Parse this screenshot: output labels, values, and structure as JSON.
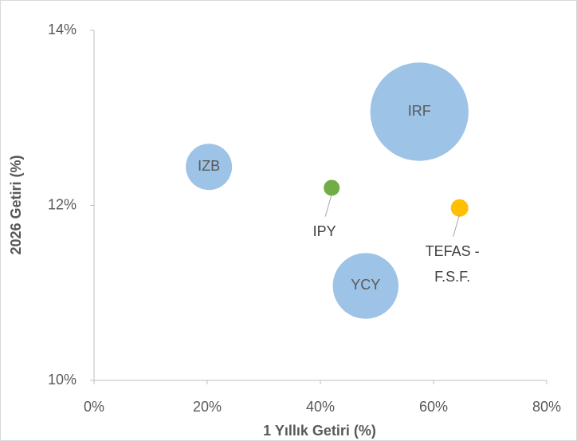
{
  "chart_data": {
    "type": "bubble",
    "xlabel": "1 Yıllık Getiri (%)",
    "ylabel": "2026 Getiri (%)",
    "xlim": [
      0,
      80
    ],
    "xticks": [
      {
        "value": 0,
        "label": "0%"
      },
      {
        "value": 20,
        "label": "20%"
      },
      {
        "value": 40,
        "label": "40%"
      },
      {
        "value": 60,
        "label": "60%"
      },
      {
        "value": 80,
        "label": "80%"
      }
    ],
    "ylim": [
      10,
      14
    ],
    "yticks": [
      {
        "value": 10,
        "label": "10%"
      },
      {
        "value": 12,
        "label": "12%"
      },
      {
        "value": 14,
        "label": "14%"
      }
    ],
    "series": [
      {
        "name": "IRF",
        "color": "#9dc3e6",
        "x": 57.5,
        "y": 13.07,
        "size": 38
      },
      {
        "name": "IZB",
        "color": "#9dc3e6",
        "x": 20.3,
        "y": 12.44,
        "size": 8.4
      },
      {
        "name": "IPY",
        "color": "#70ad47",
        "x": 42.0,
        "y": 12.2,
        "size": 1
      },
      {
        "name": "YCY",
        "color": "#9dc3e6",
        "x": 48.0,
        "y": 11.08,
        "size": 17
      },
      {
        "name": "TEFAS - F.S.F.",
        "color": "#ffc000",
        "x": 64.6,
        "y": 11.97,
        "size": 1.2
      }
    ]
  }
}
